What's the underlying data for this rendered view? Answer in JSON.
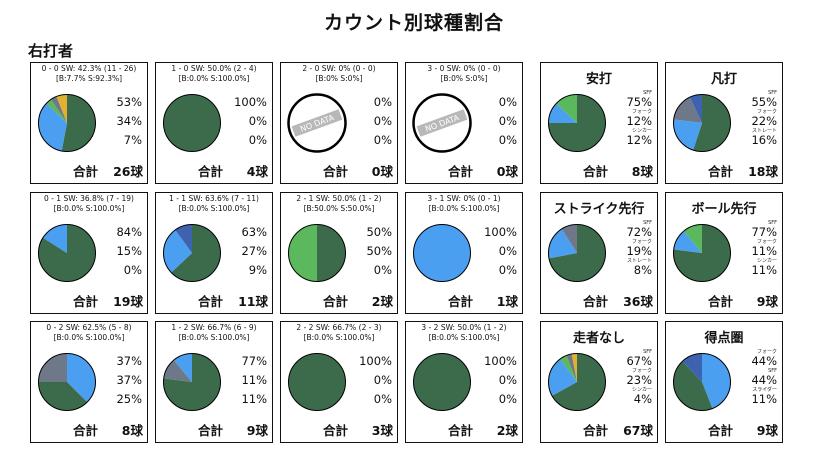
{
  "title": "カウント別球種割合",
  "subtitle": "右打者",
  "total_label": "合計",
  "colors": {
    "dark_green": "#3c6b4c",
    "light_blue": "#4a9ff0",
    "light_green": "#5cb85c",
    "gray": "#6e7888",
    "navy": "#3e62b0",
    "yellow": "#e0b030"
  },
  "chart_data": [
    {
      "type": "pie",
      "id": "c00",
      "header": "0 - 0 SW: 42.3% (11 - 26)",
      "sub": "[B:7.7% S:92.3%]",
      "slices": [
        {
          "value": 53,
          "color": "dark_green"
        },
        {
          "value": 34,
          "color": "light_blue"
        },
        {
          "value": 3.5,
          "color": "light_green"
        },
        {
          "value": 3.5,
          "color": "gray"
        },
        {
          "value": 6,
          "color": "yellow"
        }
      ],
      "pcts": [
        "53%",
        "34%",
        "7%"
      ],
      "total": "26球"
    },
    {
      "type": "pie",
      "id": "c10",
      "header": "1 - 0 SW: 50.0% (2 - 4)",
      "sub": "[B:0.0% S:100.0%]",
      "slices": [
        {
          "value": 100,
          "color": "dark_green"
        }
      ],
      "pcts": [
        "100%",
        "0%",
        "0%"
      ],
      "total": "4球"
    },
    {
      "type": "pie",
      "id": "c20",
      "header": "2 - 0 SW: 0% (0 - 0)",
      "sub": "[B:0% S:0%]",
      "nodata": true,
      "nodata_text": "NO DATA",
      "slices": [],
      "pcts": [
        "0%",
        "0%",
        "0%"
      ],
      "total": "0球"
    },
    {
      "type": "pie",
      "id": "c30",
      "header": "3 - 0 SW: 0% (0 - 0)",
      "sub": "[B:0% S:0%]",
      "nodata": true,
      "nodata_text": "NO DATA",
      "slices": [],
      "pcts": [
        "0%",
        "0%",
        "0%"
      ],
      "total": "0球"
    },
    {
      "type": "pie",
      "id": "s_hit",
      "title": "安打",
      "slices": [
        {
          "value": 75,
          "color": "dark_green"
        },
        {
          "value": 12,
          "color": "light_blue"
        },
        {
          "value": 13,
          "color": "light_green"
        }
      ],
      "pcts": [
        "75%",
        "12%",
        "12%"
      ],
      "labels": [
        "SFF",
        "フォーク",
        "シンカー"
      ],
      "total": "8球"
    },
    {
      "type": "pie",
      "id": "s_out",
      "title": "凡打",
      "slices": [
        {
          "value": 55,
          "color": "dark_green"
        },
        {
          "value": 22,
          "color": "light_blue"
        },
        {
          "value": 16,
          "color": "gray"
        },
        {
          "value": 7,
          "color": "navy"
        }
      ],
      "pcts": [
        "55%",
        "22%",
        "16%"
      ],
      "labels": [
        "SFF",
        "フォーク",
        "ストレート"
      ],
      "total": "18球"
    },
    {
      "type": "pie",
      "id": "c01",
      "header": "0 - 1 SW: 36.8% (7 - 19)",
      "sub": "[B:0.0% S:100.0%]",
      "slices": [
        {
          "value": 84,
          "color": "dark_green"
        },
        {
          "value": 16,
          "color": "light_blue"
        }
      ],
      "pcts": [
        "84%",
        "15%",
        "0%"
      ],
      "total": "19球"
    },
    {
      "type": "pie",
      "id": "c11",
      "header": "1 - 1 SW: 63.6% (7 - 11)",
      "sub": "[B:0.0% S:100.0%]",
      "slices": [
        {
          "value": 63,
          "color": "dark_green"
        },
        {
          "value": 27,
          "color": "light_blue"
        },
        {
          "value": 10,
          "color": "navy"
        }
      ],
      "pcts": [
        "63%",
        "27%",
        "9%"
      ],
      "total": "11球"
    },
    {
      "type": "pie",
      "id": "c21",
      "header": "2 - 1 SW: 50.0% (1 - 2)",
      "sub": "[B:50.0% S:50.0%]",
      "slices": [
        {
          "value": 50,
          "color": "dark_green"
        },
        {
          "value": 50,
          "color": "light_green"
        }
      ],
      "pcts": [
        "50%",
        "50%",
        "0%"
      ],
      "total": "2球"
    },
    {
      "type": "pie",
      "id": "c31",
      "header": "3 - 1 SW: 0% (0 - 1)",
      "sub": "[B:0.0% S:100.0%]",
      "slices": [
        {
          "value": 100,
          "color": "light_blue"
        }
      ],
      "pcts": [
        "100%",
        "0%",
        "0%"
      ],
      "total": "1球"
    },
    {
      "type": "pie",
      "id": "s_strike",
      "title": "ストライク先行",
      "slices": [
        {
          "value": 72,
          "color": "dark_green"
        },
        {
          "value": 19,
          "color": "light_blue"
        },
        {
          "value": 9,
          "color": "gray"
        }
      ],
      "pcts": [
        "72%",
        "19%",
        "8%"
      ],
      "labels": [
        "SFF",
        "フォーク",
        "ストレート"
      ],
      "total": "36球"
    },
    {
      "type": "pie",
      "id": "s_ball",
      "title": "ボール先行",
      "slices": [
        {
          "value": 77,
          "color": "dark_green"
        },
        {
          "value": 12,
          "color": "light_blue"
        },
        {
          "value": 11,
          "color": "light_green"
        }
      ],
      "pcts": [
        "77%",
        "11%",
        "11%"
      ],
      "labels": [
        "SFF",
        "フォーク",
        "シンカー"
      ],
      "total": "9球"
    },
    {
      "type": "pie",
      "id": "c02",
      "header": "0 - 2 SW: 62.5% (5 - 8)",
      "sub": "[B:0.0% S:100.0%]",
      "slices": [
        {
          "value": 37.5,
          "color": "light_blue"
        },
        {
          "value": 37.5,
          "color": "dark_green"
        },
        {
          "value": 25,
          "color": "gray"
        }
      ],
      "pcts": [
        "37%",
        "37%",
        "25%"
      ],
      "total": "8球"
    },
    {
      "type": "pie",
      "id": "c12",
      "header": "1 - 2 SW: 66.7% (6 - 9)",
      "sub": "[B:0.0% S:100.0%]",
      "slices": [
        {
          "value": 77,
          "color": "dark_green"
        },
        {
          "value": 12,
          "color": "gray"
        },
        {
          "value": 11,
          "color": "light_blue"
        }
      ],
      "pcts": [
        "77%",
        "11%",
        "11%"
      ],
      "total": "9球"
    },
    {
      "type": "pie",
      "id": "c22",
      "header": "2 - 2 SW: 66.7% (2 - 3)",
      "sub": "[B:0.0% S:100.0%]",
      "slices": [
        {
          "value": 100,
          "color": "dark_green"
        }
      ],
      "pcts": [
        "100%",
        "0%",
        "0%"
      ],
      "total": "3球"
    },
    {
      "type": "pie",
      "id": "c32",
      "header": "3 - 2 SW: 50.0% (1 - 2)",
      "sub": "[B:0.0% S:100.0%]",
      "slices": [
        {
          "value": 100,
          "color": "dark_green"
        }
      ],
      "pcts": [
        "100%",
        "0%",
        "0%"
      ],
      "total": "2球"
    },
    {
      "type": "pie",
      "id": "s_none",
      "title": "走者なし",
      "slices": [
        {
          "value": 67,
          "color": "dark_green"
        },
        {
          "value": 23,
          "color": "light_blue"
        },
        {
          "value": 4,
          "color": "light_green"
        },
        {
          "value": 3,
          "color": "gray"
        },
        {
          "value": 3,
          "color": "yellow"
        }
      ],
      "pcts": [
        "67%",
        "23%",
        "4%"
      ],
      "labels": [
        "SFF",
        "フォーク",
        "シンカー"
      ],
      "total": "67球"
    },
    {
      "type": "pie",
      "id": "s_scoring",
      "title": "得点圏",
      "slices": [
        {
          "value": 44,
          "color": "light_blue"
        },
        {
          "value": 44,
          "color": "dark_green"
        },
        {
          "value": 12,
          "color": "navy"
        }
      ],
      "pcts": [
        "44%",
        "44%",
        "11%"
      ],
      "labels": [
        "フォーク",
        "SFF",
        "スライダー"
      ],
      "total": "9球"
    }
  ]
}
